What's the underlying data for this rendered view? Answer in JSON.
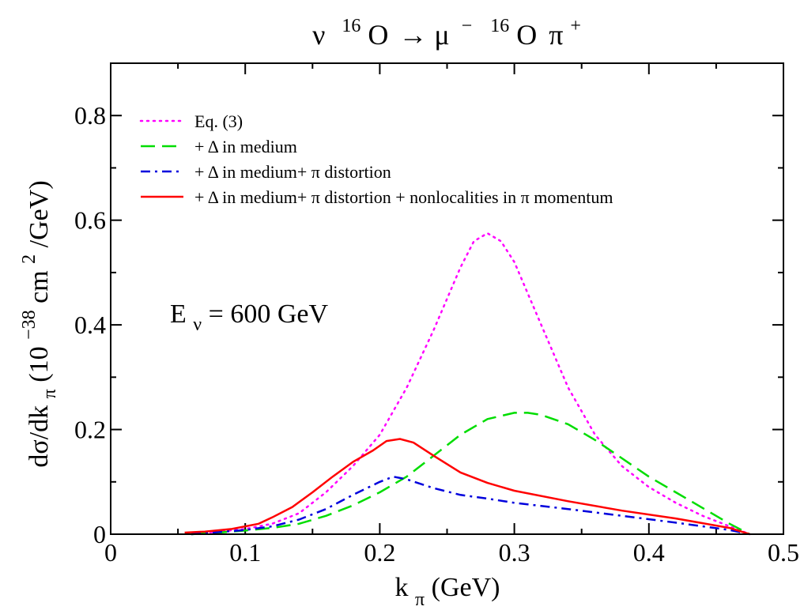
{
  "chart_data": {
    "type": "line",
    "title": {
      "nu": "ν",
      "target_mass": "16",
      "target": "O",
      "arrow": "→",
      "lepton": "μ",
      "lepton_charge": "−",
      "final_mass": "16",
      "final": "O",
      "pion": "π",
      "pion_charge": "+"
    },
    "xlabel": {
      "main": "k",
      "sub": "π",
      "unit": " (GeV)"
    },
    "ylabel": {
      "part1": "dσ/dk",
      "sub": "π",
      "part2": " (10",
      "exp1": "−38",
      "part3": " cm",
      "exp2": "2",
      "part4": "/GeV)"
    },
    "annotation": {
      "main": "E",
      "sub": "ν",
      "rest": " = 600 GeV"
    },
    "xlim": [
      0,
      0.5
    ],
    "ylim": [
      0,
      0.9
    ],
    "xticks": [
      {
        "value": 0,
        "label": "0"
      },
      {
        "value": 0.1,
        "label": "0.1"
      },
      {
        "value": 0.2,
        "label": "0.2"
      },
      {
        "value": 0.3,
        "label": "0.3"
      },
      {
        "value": 0.4,
        "label": "0.4"
      },
      {
        "value": 0.5,
        "label": "0.5"
      }
    ],
    "yticks": [
      {
        "value": 0,
        "label": "0"
      },
      {
        "value": 0.2,
        "label": "0.2"
      },
      {
        "value": 0.4,
        "label": "0.4"
      },
      {
        "value": 0.6,
        "label": "0.6"
      },
      {
        "value": 0.8,
        "label": "0.8"
      }
    ],
    "x_minor_step": 0.05,
    "y_minor_step": 0.1,
    "legend_position": "top-left",
    "series": [
      {
        "name": "Eq. (3)",
        "color": "#ff00ff",
        "style": "dotted",
        "x": [
          0.06,
          0.08,
          0.1,
          0.12,
          0.14,
          0.16,
          0.18,
          0.2,
          0.22,
          0.24,
          0.26,
          0.27,
          0.28,
          0.29,
          0.3,
          0.32,
          0.34,
          0.36,
          0.38,
          0.4,
          0.42,
          0.44,
          0.46,
          0.475
        ],
        "y": [
          0.0,
          0.005,
          0.01,
          0.02,
          0.04,
          0.08,
          0.13,
          0.19,
          0.28,
          0.39,
          0.51,
          0.56,
          0.575,
          0.56,
          0.52,
          0.4,
          0.28,
          0.19,
          0.13,
          0.09,
          0.06,
          0.035,
          0.015,
          0.0
        ]
      },
      {
        "name": "+ Δ in medium",
        "color": "#00dd00",
        "style": "dashed",
        "x": [
          0.06,
          0.08,
          0.1,
          0.12,
          0.14,
          0.16,
          0.18,
          0.2,
          0.22,
          0.24,
          0.26,
          0.28,
          0.3,
          0.31,
          0.32,
          0.34,
          0.36,
          0.38,
          0.4,
          0.42,
          0.44,
          0.46,
          0.475
        ],
        "y": [
          0.0,
          0.003,
          0.007,
          0.012,
          0.02,
          0.035,
          0.055,
          0.08,
          0.11,
          0.15,
          0.19,
          0.22,
          0.232,
          0.232,
          0.228,
          0.21,
          0.18,
          0.145,
          0.11,
          0.08,
          0.05,
          0.02,
          0.0
        ]
      },
      {
        "name": "+ Δ in medium+ π distortion",
        "color": "#0000dd",
        "style": "dashdot",
        "x": [
          0.06,
          0.08,
          0.1,
          0.12,
          0.14,
          0.16,
          0.18,
          0.2,
          0.21,
          0.22,
          0.24,
          0.26,
          0.28,
          0.3,
          0.34,
          0.38,
          0.42,
          0.46,
          0.475
        ],
        "y": [
          0.0,
          0.004,
          0.008,
          0.015,
          0.028,
          0.048,
          0.075,
          0.1,
          0.11,
          0.105,
          0.088,
          0.075,
          0.068,
          0.06,
          0.048,
          0.035,
          0.022,
          0.008,
          0.0
        ]
      },
      {
        "name": "+ Δ in medium+ π distortion + nonlocalities in π momentum",
        "color": "#ff0000",
        "style": "solid",
        "x": [
          0.055,
          0.07,
          0.09,
          0.11,
          0.12,
          0.135,
          0.15,
          0.165,
          0.18,
          0.195,
          0.205,
          0.215,
          0.225,
          0.24,
          0.26,
          0.28,
          0.3,
          0.34,
          0.38,
          0.42,
          0.46,
          0.475
        ],
        "y": [
          0.003,
          0.005,
          0.01,
          0.02,
          0.032,
          0.052,
          0.08,
          0.11,
          0.138,
          0.16,
          0.178,
          0.182,
          0.175,
          0.15,
          0.118,
          0.098,
          0.083,
          0.063,
          0.045,
          0.03,
          0.012,
          0.0
        ]
      }
    ]
  }
}
